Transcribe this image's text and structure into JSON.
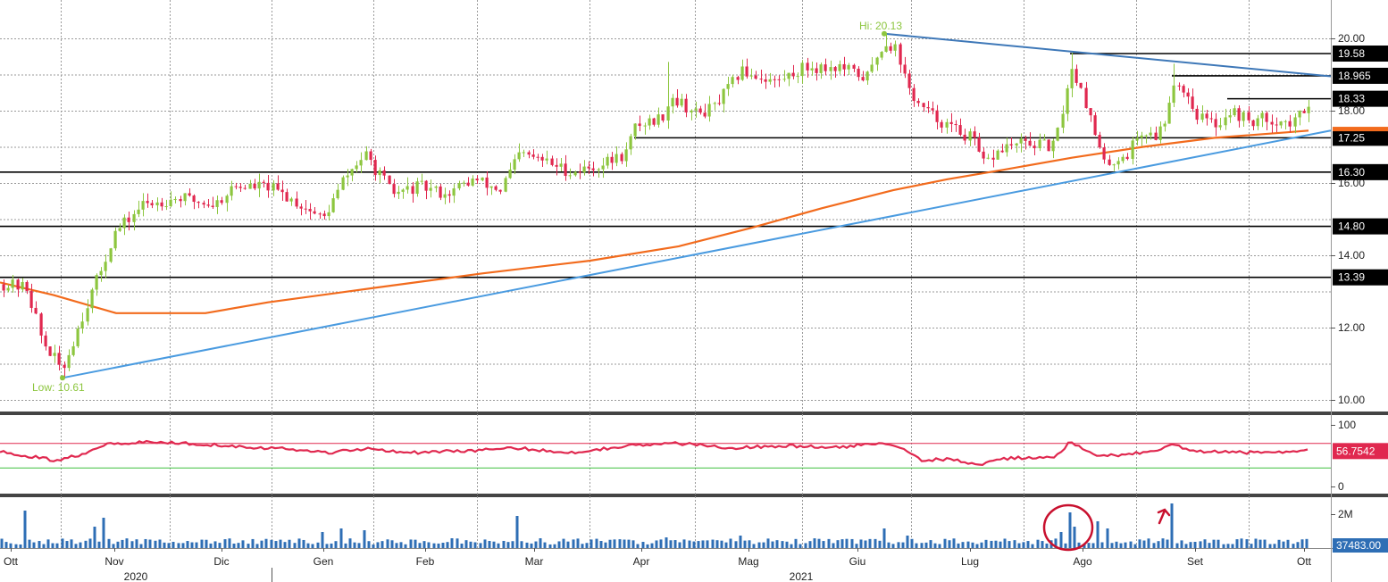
{
  "chart_data": [
    {
      "type": "candlestick",
      "panel": "price",
      "grid": true,
      "y_ticks": [
        "20.00",
        "18.00",
        "16.00",
        "14.00",
        "12.00",
        "10.00"
      ],
      "y_tick_values": [
        20,
        18,
        16,
        14,
        12,
        10
      ],
      "ylim": [
        9.6,
        21.0
      ],
      "x_months": [
        "Ott",
        "Nov",
        "Dic",
        "Gen",
        "Feb",
        "Mar",
        "Apr",
        "Mag",
        "Giu",
        "Lug",
        "Ago",
        "Set",
        "Ott"
      ],
      "x_years": [
        "2020",
        "2021"
      ],
      "annotations": {
        "high": {
          "text": "Hi: 20.13",
          "value": 20.13
        },
        "low": {
          "text": "Low: 10.61",
          "value": 10.61
        }
      },
      "levels": [
        {
          "label": "19.58",
          "value": 19.58
        },
        {
          "label": "18.965",
          "value": 18.965
        },
        {
          "label": "18.33",
          "value": 18.33
        },
        {
          "label": "17.25",
          "value": 17.25
        },
        {
          "label": "16.30",
          "value": 16.3
        },
        {
          "label": "14.80",
          "value": 14.8
        },
        {
          "label": "13.39",
          "value": 13.39
        }
      ],
      "moving_average_last": 17.48,
      "trendlines": [
        "rising support from 10.61 low",
        "falling resistance from 20.13 high"
      ],
      "colors": {
        "up": "#8dc63f",
        "down": "#e0284f",
        "ma": "#f26b1d",
        "trend_up": "#4a9be0",
        "trend_down": "#3e78b8",
        "level": "#000000",
        "level_box": "#000000"
      },
      "last_close": 18.3
    },
    {
      "type": "line",
      "panel": "rsi",
      "y_ticks": [
        "100",
        "0"
      ],
      "y_tick_values": [
        100,
        0
      ],
      "ylim": [
        0,
        100
      ],
      "upper_band": 70,
      "lower_band": 30,
      "last_value_label": "56.7542",
      "colors": {
        "line": "#e0284f",
        "upper": "#e0284f",
        "lower": "#3fbf3f"
      }
    },
    {
      "type": "bar",
      "panel": "volume",
      "y_ticks": [
        "2M"
      ],
      "y_tick_values": [
        2000000
      ],
      "last_value_label": "37483.00",
      "colors": {
        "bar": "#2e6eb5",
        "box": "#2e6eb5",
        "highlight": "#c8102e"
      }
    }
  ]
}
